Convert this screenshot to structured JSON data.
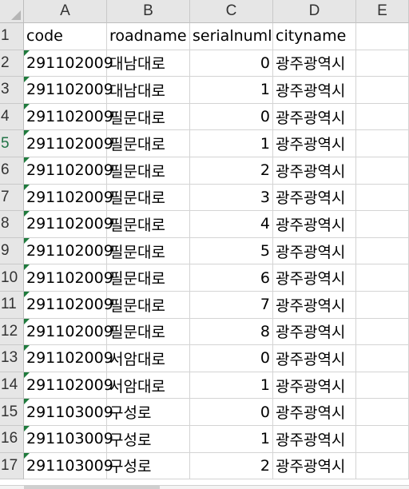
{
  "columns": [
    "A",
    "B",
    "C",
    "D",
    "E"
  ],
  "row_numbers": [
    "1",
    "2",
    "3",
    "4",
    "5",
    "6",
    "7",
    "8",
    "9",
    "10",
    "11",
    "12",
    "13",
    "14",
    "15",
    "16",
    "17"
  ],
  "active_row": "5",
  "header_row": {
    "A": "code",
    "B": "roadname",
    "C": "serialnuml",
    "D": "cityname",
    "E": ""
  },
  "rows": [
    {
      "code": "291102009",
      "roadname": "대남대로",
      "serial": "0",
      "city": "광주광역시",
      "text_number_flag": true
    },
    {
      "code": "291102009",
      "roadname": "대남대로",
      "serial": "1",
      "city": "광주광역시",
      "text_number_flag": true
    },
    {
      "code": "291102009",
      "roadname": "필문대로",
      "serial": "0",
      "city": "광주광역시",
      "text_number_flag": true
    },
    {
      "code": "291102009",
      "roadname": "필문대로",
      "serial": "1",
      "city": "광주광역시",
      "text_number_flag": true
    },
    {
      "code": "291102009",
      "roadname": "필문대로",
      "serial": "2",
      "city": "광주광역시",
      "text_number_flag": true
    },
    {
      "code": "291102009",
      "roadname": "필문대로",
      "serial": "3",
      "city": "광주광역시",
      "text_number_flag": true
    },
    {
      "code": "291102009",
      "roadname": "필문대로",
      "serial": "4",
      "city": "광주광역시",
      "text_number_flag": true
    },
    {
      "code": "291102009",
      "roadname": "필문대로",
      "serial": "5",
      "city": "광주광역시",
      "text_number_flag": true
    },
    {
      "code": "291102009",
      "roadname": "필문대로",
      "serial": "6",
      "city": "광주광역시",
      "text_number_flag": true
    },
    {
      "code": "291102009",
      "roadname": "필문대로",
      "serial": "7",
      "city": "광주광역시",
      "text_number_flag": true
    },
    {
      "code": "291102009",
      "roadname": "필문대로",
      "serial": "8",
      "city": "광주광역시",
      "text_number_flag": true
    },
    {
      "code": "291102009",
      "roadname": "서암대로",
      "serial": "0",
      "city": "광주광역시",
      "text_number_flag": true
    },
    {
      "code": "291102009",
      "roadname": "서암대로",
      "serial": "1",
      "city": "광주광역시",
      "text_number_flag": true
    },
    {
      "code": "291103009",
      "roadname": "구성로",
      "serial": "0",
      "city": "광주광역시",
      "text_number_flag": true
    },
    {
      "code": "291103009",
      "roadname": "구성로",
      "serial": "1",
      "city": "광주광역시",
      "text_number_flag": true
    },
    {
      "code": "291103009",
      "roadname": "구성로",
      "serial": "2",
      "city": "광주광역시",
      "text_number_flag": true
    }
  ],
  "colors": {
    "header_bg": "#e6e6e6",
    "gridline": "#d4d4d4",
    "error_flag": "#1e7a3c",
    "active_row_text": "#217346"
  },
  "icons": {
    "select_all": "select-all-triangle-icon",
    "text_number_flag": "green-triangle-indicator"
  }
}
